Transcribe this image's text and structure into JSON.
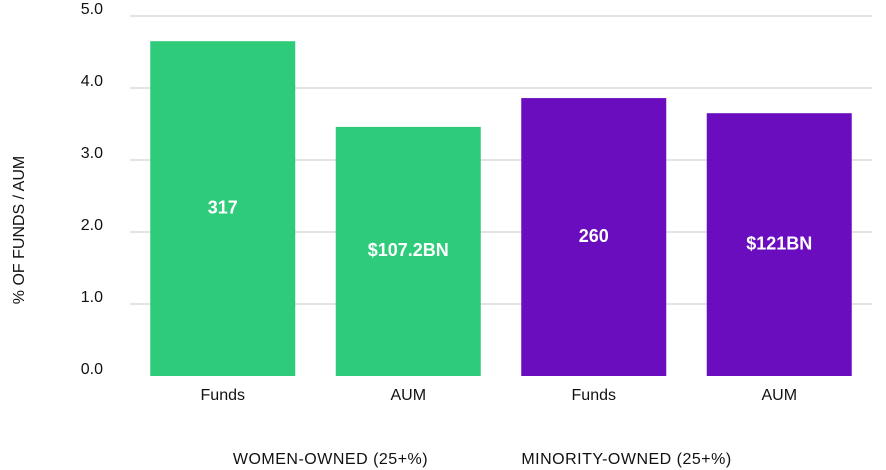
{
  "chart_data": {
    "type": "bar",
    "y_label": "% OF FUNDS / AUM",
    "categories": [
      "Funds",
      "AUM"
    ],
    "series": [
      {
        "name": "WOMEN-OWNED (25+%)",
        "color": "#2ecc7a",
        "values": [
          4.65,
          3.46
        ],
        "bar_labels": [
          "317",
          "$107.2BN"
        ]
      },
      {
        "name": "MINORITY-OWNED (25+%)",
        "color": "#6a0dbf",
        "values": [
          3.86,
          3.65
        ],
        "bar_labels": [
          "260",
          "$121BN"
        ]
      }
    ],
    "ylim": [
      0,
      5
    ],
    "yticks": [
      {
        "value": 0,
        "label": "0.0"
      },
      {
        "value": 1,
        "label": "1.0"
      },
      {
        "value": 2,
        "label": "2.0"
      },
      {
        "value": 3,
        "label": "3.0"
      },
      {
        "value": 4,
        "label": "4.0"
      },
      {
        "value": 5,
        "label": "5.0"
      }
    ],
    "grid": true
  }
}
